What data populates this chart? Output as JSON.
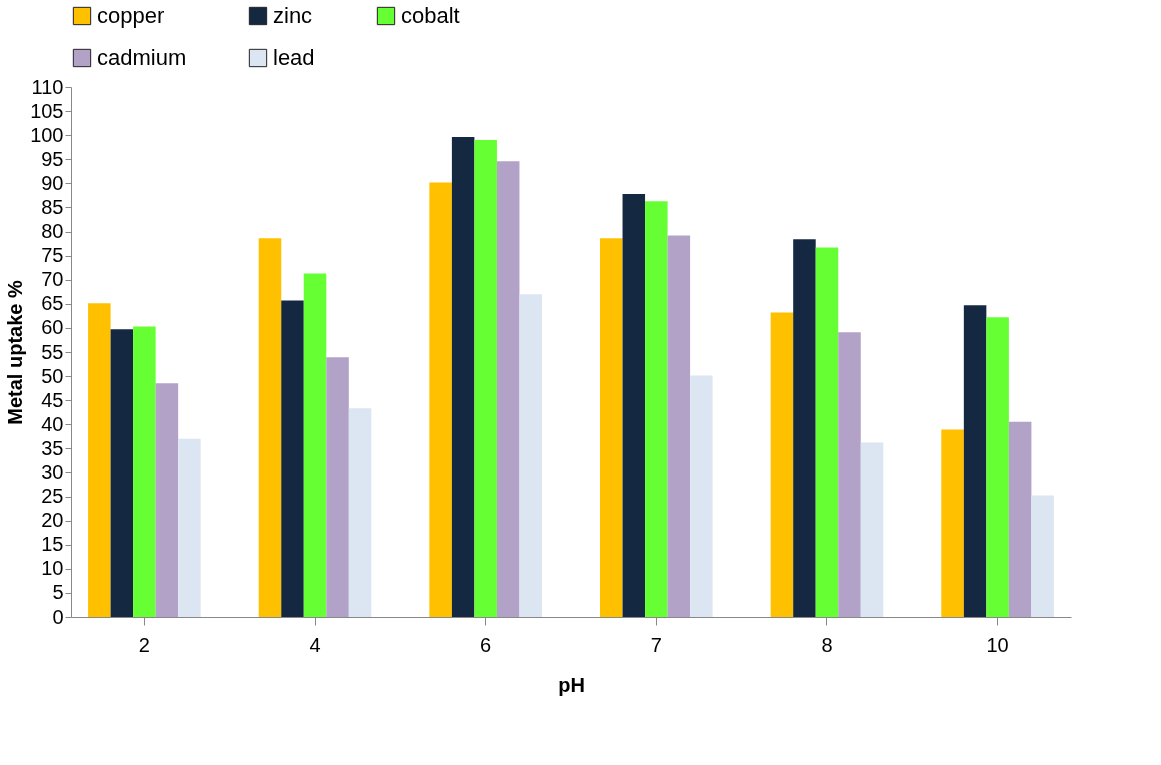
{
  "chart_data": {
    "type": "bar",
    "xlabel": "pH",
    "ylabel": "Metal uptake %",
    "categories": [
      "2",
      "4",
      "6",
      "7",
      "8",
      "10"
    ],
    "series": [
      {
        "name": "copper",
        "color": "#ffc000",
        "values": [
          65.1,
          78.6,
          90.2,
          78.6,
          63.2,
          38.9
        ]
      },
      {
        "name": "zinc",
        "color": "#142841",
        "values": [
          59.7,
          65.7,
          99.6,
          87.8,
          78.4,
          64.7
        ]
      },
      {
        "name": "cobalt",
        "color": "#66ff33",
        "values": [
          60.3,
          71.3,
          99.0,
          86.3,
          76.7,
          62.2
        ]
      },
      {
        "name": "cadmium",
        "color": "#b3a2c7",
        "values": [
          48.5,
          53.9,
          94.6,
          79.2,
          59.1,
          40.5
        ]
      },
      {
        "name": "lead",
        "color": "#dce6f2",
        "values": [
          37.0,
          43.3,
          67.0,
          50.1,
          36.2,
          25.2
        ]
      }
    ],
    "ylim": [
      0,
      110
    ],
    "yticks": [
      0,
      5,
      10,
      15,
      20,
      25,
      30,
      35,
      40,
      45,
      50,
      55,
      60,
      65,
      70,
      75,
      80,
      85,
      90,
      95,
      100,
      105,
      110
    ],
    "grid": false,
    "legend": "top"
  }
}
